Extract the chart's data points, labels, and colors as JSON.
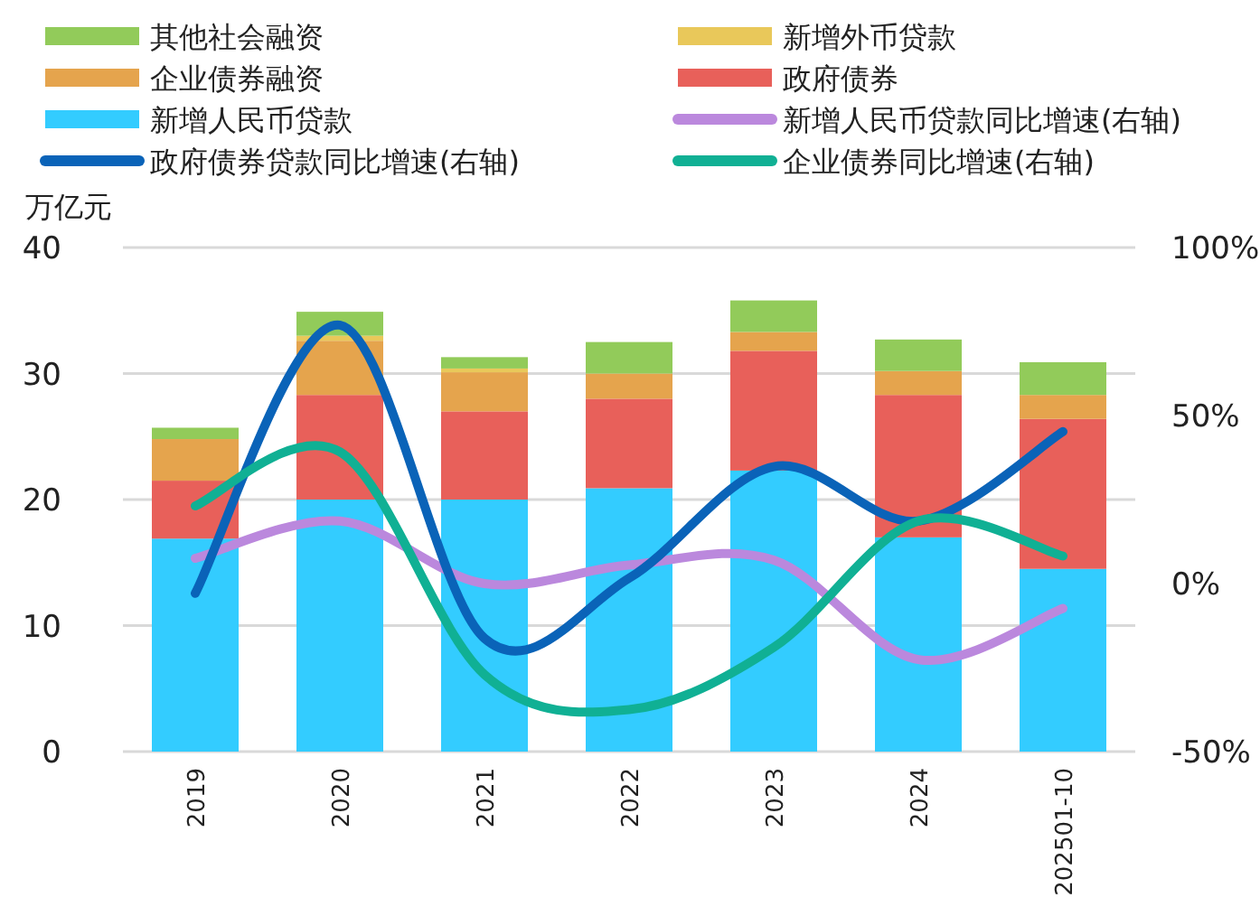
{
  "chart_data": {
    "type": "bar",
    "stacked": true,
    "ylabel": "万亿元",
    "categories": [
      "2019",
      "2020",
      "2021",
      "2022",
      "2023",
      "2024",
      "202501-10"
    ],
    "series": [
      {
        "name": "新增人民币贷款",
        "color": "#33ccff",
        "values": [
          16.9,
          20.0,
          20.0,
          20.9,
          22.3,
          17.0,
          14.5
        ]
      },
      {
        "name": "政府债券",
        "color": "#e8605a",
        "values": [
          4.6,
          8.3,
          7.0,
          7.1,
          9.5,
          11.3,
          11.9
        ]
      },
      {
        "name": "企业债券融资",
        "color": "#e5a44d",
        "values": [
          3.3,
          4.3,
          3.1,
          2.0,
          1.5,
          1.9,
          1.9
        ]
      },
      {
        "name": "新增外币贷款",
        "color": "#e9c85a",
        "values": [
          0,
          0.4,
          0.3,
          0,
          0,
          0,
          0
        ]
      },
      {
        "name": "其他社会融资",
        "color": "#92cb5a",
        "values": [
          0.9,
          1.9,
          0.9,
          2.5,
          2.5,
          2.5,
          2.6
        ]
      },
      {
        "name": "新增人民币贷款同比增速(右轴)",
        "type": "line",
        "axis": "y2",
        "color": "#bb88dd",
        "values": [
          7.5,
          18.6,
          0,
          5.5,
          7.0,
          -22.6,
          -7.4
        ]
      },
      {
        "name": "政府债券贷款同比增速(右轴)",
        "type": "line",
        "axis": "y2",
        "color": "#0a63b8",
        "values": [
          -2.9,
          76.9,
          -16.3,
          1.6,
          34.8,
          18.6,
          45.2
        ]
      },
      {
        "name": "企业债券同比增速(右轴)",
        "type": "line",
        "axis": "y2",
        "color": "#10b094",
        "values": [
          23.1,
          39.2,
          -27.1,
          -37.5,
          -19.0,
          18.6,
          8.2
        ]
      }
    ],
    "ylim": [
      0,
      40
    ],
    "yticks": [
      0,
      10,
      20,
      30,
      40
    ],
    "y2lim": [
      -50,
      100
    ],
    "y2ticks": [
      {
        "value": -50,
        "label": "-50%"
      },
      {
        "value": 0,
        "label": "0%"
      },
      {
        "value": 50,
        "label": "50%"
      },
      {
        "value": 100,
        "label": "100%"
      }
    ],
    "grid": "y",
    "legend": "top"
  }
}
